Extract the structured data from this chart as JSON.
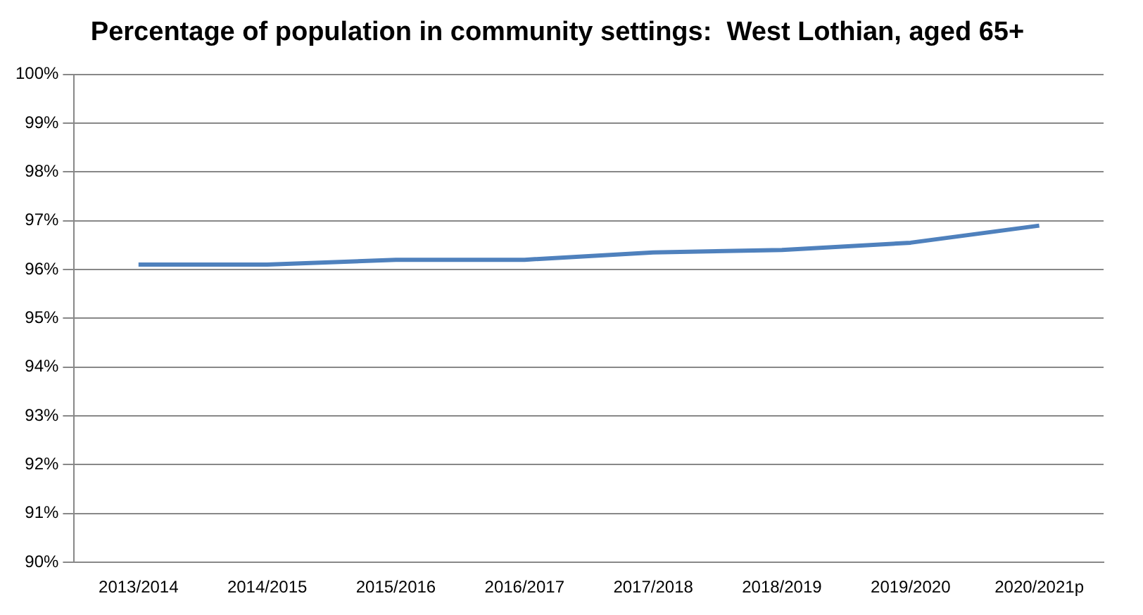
{
  "chart_data": {
    "type": "line",
    "title": "Percentage of population in community settings:  West Lothian, aged 65+",
    "categories": [
      "2013/2014",
      "2014/2015",
      "2015/2016",
      "2016/2017",
      "2017/2018",
      "2018/2019",
      "2019/2020",
      "2020/2021p"
    ],
    "series": [
      {
        "color": "#4f81bd",
        "values": [
          96.1,
          96.1,
          96.2,
          96.2,
          96.35,
          96.4,
          96.55,
          96.9
        ]
      }
    ],
    "ylim": [
      90,
      100
    ],
    "yticks": [
      {
        "value": 90,
        "label": "90%"
      },
      {
        "value": 91,
        "label": "91%"
      },
      {
        "value": 92,
        "label": "92%"
      },
      {
        "value": 93,
        "label": "93%"
      },
      {
        "value": 94,
        "label": "94%"
      },
      {
        "value": 95,
        "label": "95%"
      },
      {
        "value": 96,
        "label": "96%"
      },
      {
        "value": 97,
        "label": "97%"
      },
      {
        "value": 98,
        "label": "98%"
      },
      {
        "value": 99,
        "label": "99%"
      },
      {
        "value": 100,
        "label": "100%"
      }
    ],
    "grid": "y",
    "legend": false,
    "marker": "none",
    "line_style": "solid"
  }
}
